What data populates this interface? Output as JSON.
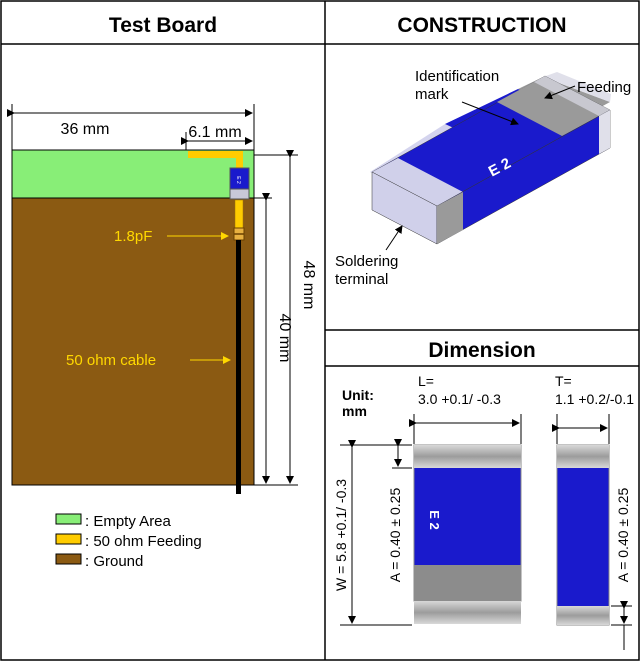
{
  "test_board": {
    "title": "Test Board",
    "dim_width": "36 mm",
    "dim_feed_offset": "6.1 mm",
    "dim_height_total": "48 mm",
    "dim_height_ground": "40 mm",
    "cap_label": "1.8pF",
    "cable_label": "50 ohm cable",
    "legend": [
      {
        "label": ": Empty Area",
        "color": "#88ee77"
      },
      {
        "label": ": 50 ohm Feeding",
        "color": "#ffcc00"
      },
      {
        "label": ": Ground",
        "color": "#8b5a12"
      }
    ]
  },
  "construction": {
    "title": "CONSTRUCTION",
    "identification_label_line1": "Identification",
    "identification_label_line2": "mark",
    "feeding_label": "Feeding",
    "soldering_label_line1": "Soldering",
    "soldering_label_line2": "terminal",
    "chip_mark": "E 2"
  },
  "dimension": {
    "title": "Dimension",
    "unit_line1": "Unit:",
    "unit_line2": "mm",
    "L_label": "L=",
    "L_value": "3.0 +0.1/ -0.3",
    "T_label": "T=",
    "T_value": "1.1 +0.2/-0.1",
    "W_value": "W = 5.8 +0.1/ -0.3",
    "A_value_front": "A = 0.40 ± 0.25",
    "A_value_side": "A = 0.40 ± 0.25",
    "chip_mark": "E 2"
  },
  "colors": {
    "ground": "#8b5a12",
    "empty_area": "#88ee77",
    "feed": "#ffcc00",
    "chip_blue": "#1a1acc",
    "terminal_gray": "#9a9a9a",
    "label_yellow": "#ffd800"
  }
}
